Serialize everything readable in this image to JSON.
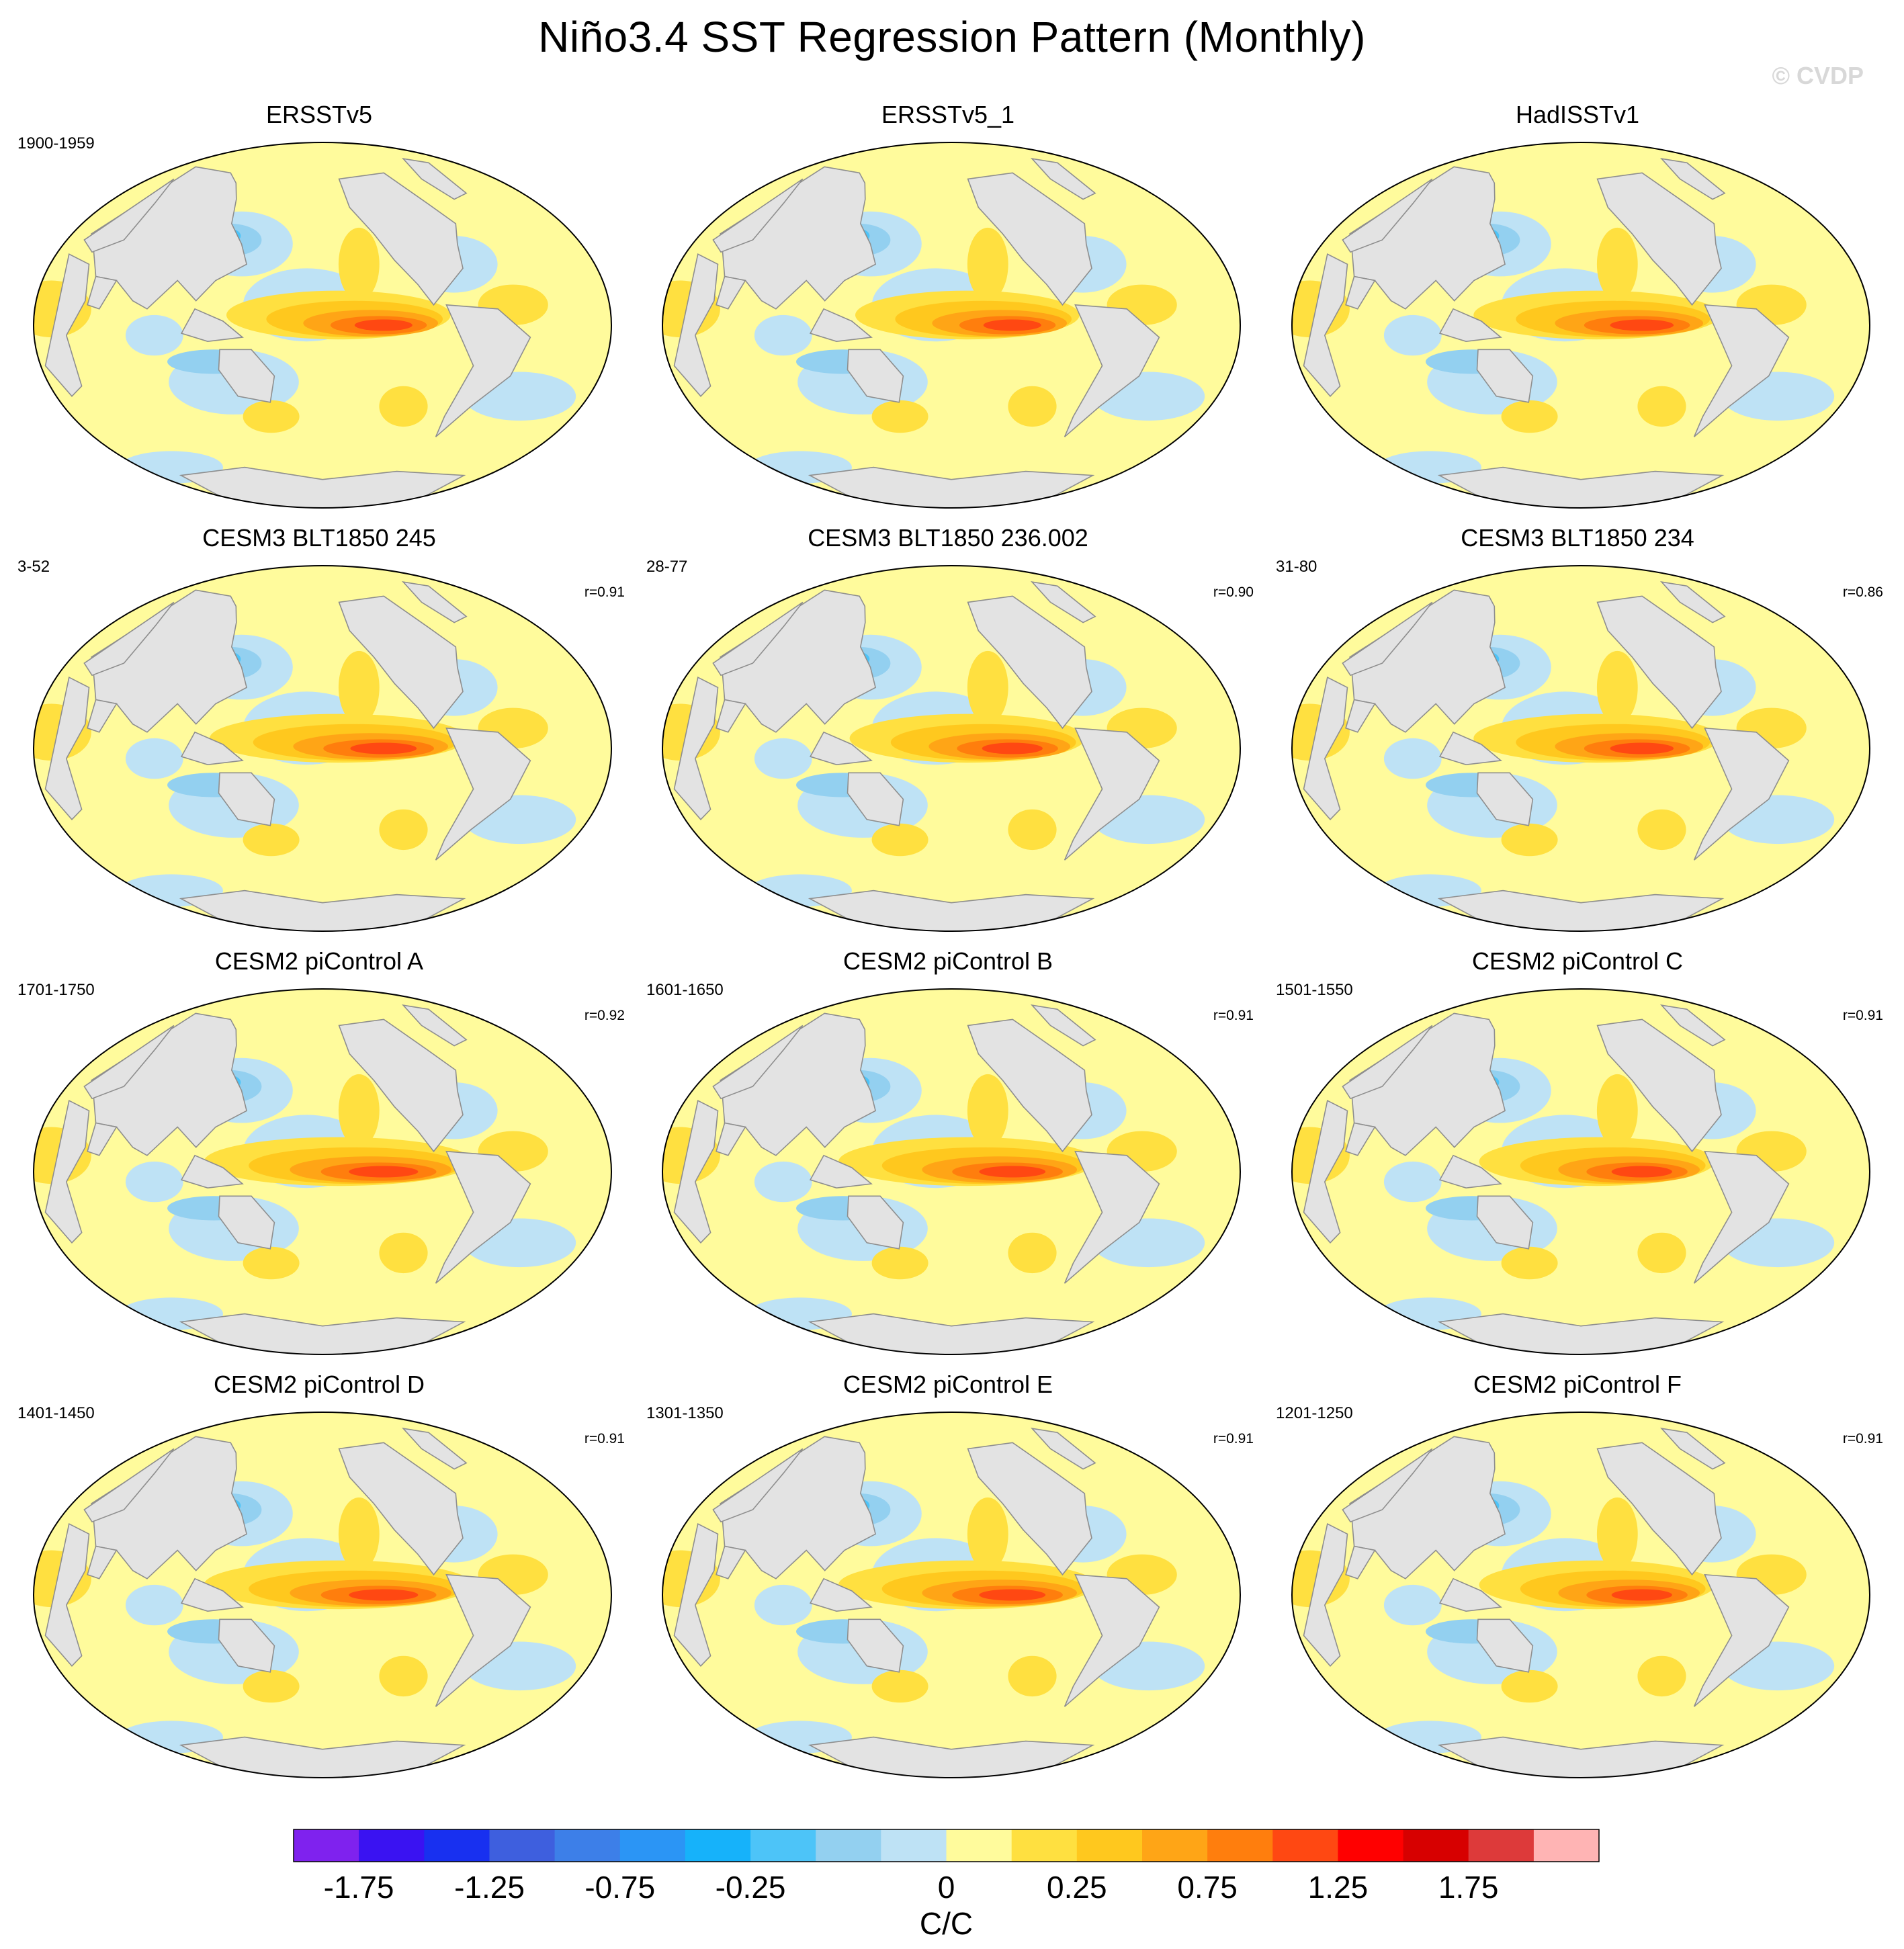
{
  "figure": {
    "title": "Niño3.4 SST Regression Pattern (Monthly)",
    "watermark": "© CVDP"
  },
  "chart_data": {
    "type": "map-grid",
    "panels": [
      {
        "title": "ERSSTv5",
        "period": "1900-1959",
        "r": "",
        "intensity": 1.0
      },
      {
        "title": "ERSSTv5_1",
        "period": "",
        "r": "",
        "intensity": 1.0
      },
      {
        "title": "HadISSTv1",
        "period": "",
        "r": "",
        "intensity": 1.1
      },
      {
        "title": "CESM3 BLT1850 245",
        "period": "3-52",
        "r": "r=0.91",
        "intensity": 1.15
      },
      {
        "title": "CESM3 BLT1850 236.002",
        "period": "28-77",
        "r": "r=0.90",
        "intensity": 1.05
      },
      {
        "title": "CESM3 BLT1850 234",
        "period": "31-80",
        "r": "r=0.86",
        "intensity": 1.1
      },
      {
        "title": "CESM2 piControl A",
        "period": "1701-1750",
        "r": "r=0.92",
        "intensity": 1.2
      },
      {
        "title": "CESM2 piControl B",
        "period": "1601-1650",
        "r": "r=0.91",
        "intensity": 1.15
      },
      {
        "title": "CESM2 piControl C",
        "period": "1501-1550",
        "r": "r=0.91",
        "intensity": 1.05
      },
      {
        "title": "CESM2 piControl D",
        "period": "1401-1450",
        "r": "r=0.91",
        "intensity": 1.2
      },
      {
        "title": "CESM2 piControl E",
        "period": "1301-1350",
        "r": "r=0.91",
        "intensity": 1.15
      },
      {
        "title": "CESM2 piControl F",
        "period": "1201-1250",
        "r": "r=0.91",
        "intensity": 1.05
      }
    ],
    "colorbar": {
      "colors": [
        "#7f22ee",
        "#3a12f2",
        "#1830f0",
        "#3e5fde",
        "#3d7fe8",
        "#2b95f5",
        "#16b2fa",
        "#4dc4f8",
        "#93d0f0",
        "#bee2f5",
        "#fffb9c",
        "#ffe040",
        "#ffc81e",
        "#ffa516",
        "#ff7e0d",
        "#ff4812",
        "#ff0000",
        "#d70000",
        "#dd3a3a",
        "#ffb4b4"
      ],
      "tick_labels": [
        "-1.75",
        "-1.25",
        "-0.75",
        "-0.25",
        "0",
        "0.25",
        "0.75",
        "1.25",
        "1.75"
      ],
      "units": "C/C"
    }
  }
}
